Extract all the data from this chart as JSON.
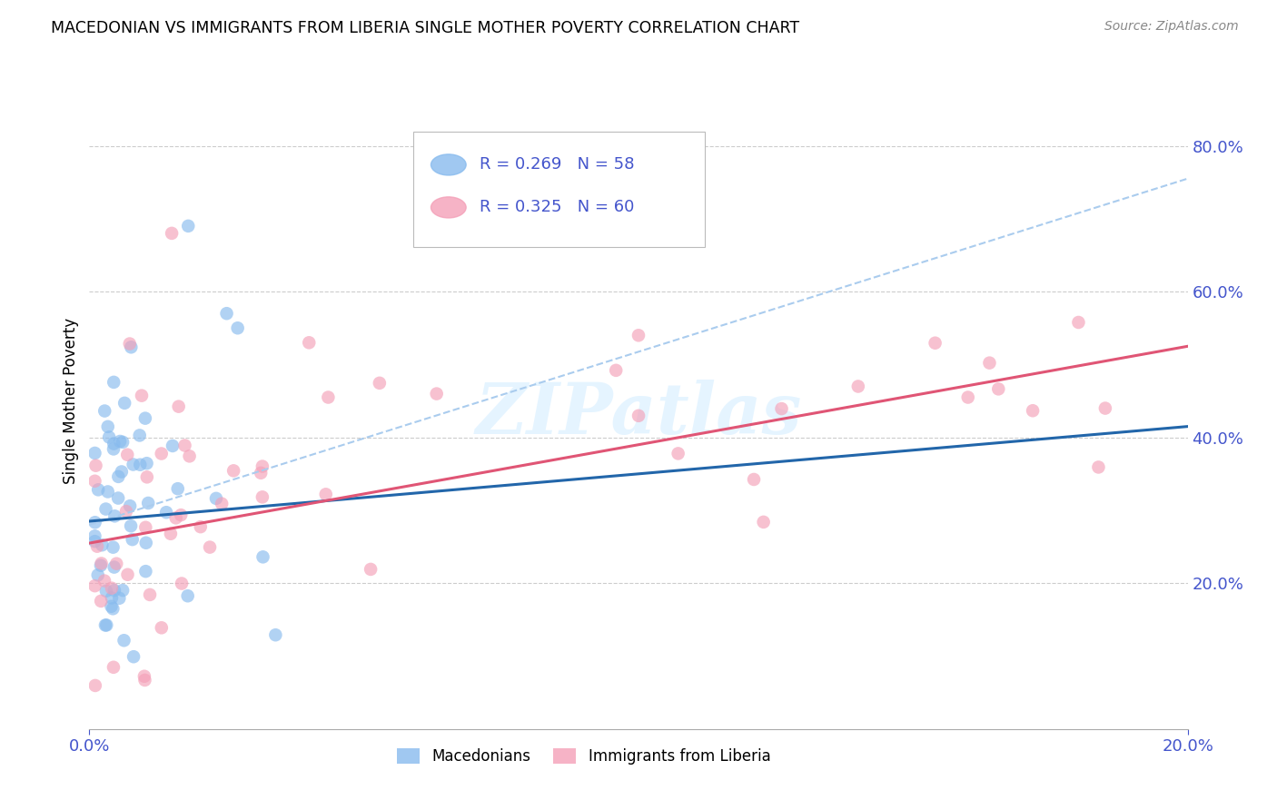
{
  "title": "MACEDONIAN VS IMMIGRANTS FROM LIBERIA SINGLE MOTHER POVERTY CORRELATION CHART",
  "source": "Source: ZipAtlas.com",
  "ylabel": "Single Mother Poverty",
  "legend_macedonian_r": "R = 0.269",
  "legend_macedonian_n": "N = 58",
  "legend_liberia_r": "R = 0.325",
  "legend_liberia_n": "N = 60",
  "macedonian_color": "#88bbee",
  "liberia_color": "#f4a0b8",
  "macedonian_line_color": "#2266aa",
  "liberia_line_color": "#e05575",
  "dashed_line_color": "#aaccee",
  "watermark": "ZIPatlas",
  "background_color": "#ffffff",
  "grid_color": "#cccccc",
  "tick_color": "#4455cc",
  "xlim": [
    0.0,
    0.2
  ],
  "ylim": [
    0.0,
    0.9
  ],
  "yticks": [
    0.2,
    0.4,
    0.6,
    0.8
  ],
  "ytick_labels": [
    "20.0%",
    "40.0%",
    "60.0%",
    "80.0%"
  ],
  "xticks": [
    0.0,
    0.2
  ],
  "xtick_labels": [
    "0.0%",
    "20.0%"
  ],
  "mac_line_x": [
    0.0,
    0.2
  ],
  "mac_line_y": [
    0.285,
    0.415
  ],
  "lib_line_x": [
    0.0,
    0.2
  ],
  "lib_line_y": [
    0.255,
    0.525
  ],
  "dash_line_x": [
    0.0,
    0.2
  ],
  "dash_line_y": [
    0.28,
    0.755
  ]
}
